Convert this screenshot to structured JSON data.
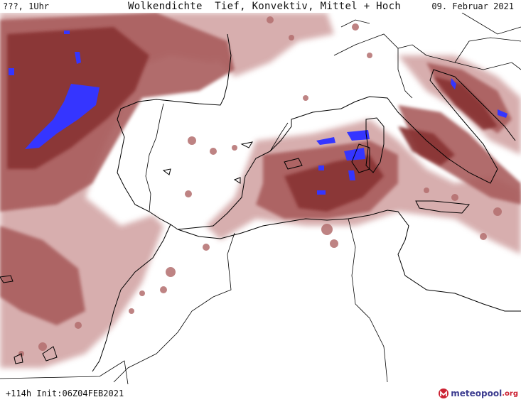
{
  "header": {
    "left": "???, 1Uhr",
    "title": "Wolkendichte  Tief, Konvektiv, Mittel + Hoch",
    "date": "09. Februar 2021"
  },
  "footer": {
    "run": "+114h Init:06Z04FEB2021"
  },
  "logo": {
    "main": "meteopool",
    "tld": ".org"
  },
  "colors": {
    "cloud_dark": "#8c3c3c",
    "cloud_mid": "#a65a5a",
    "cloud_light": "#c99494",
    "convective": "#3333ff",
    "coastline": "#000000",
    "background": "#ffffff"
  }
}
